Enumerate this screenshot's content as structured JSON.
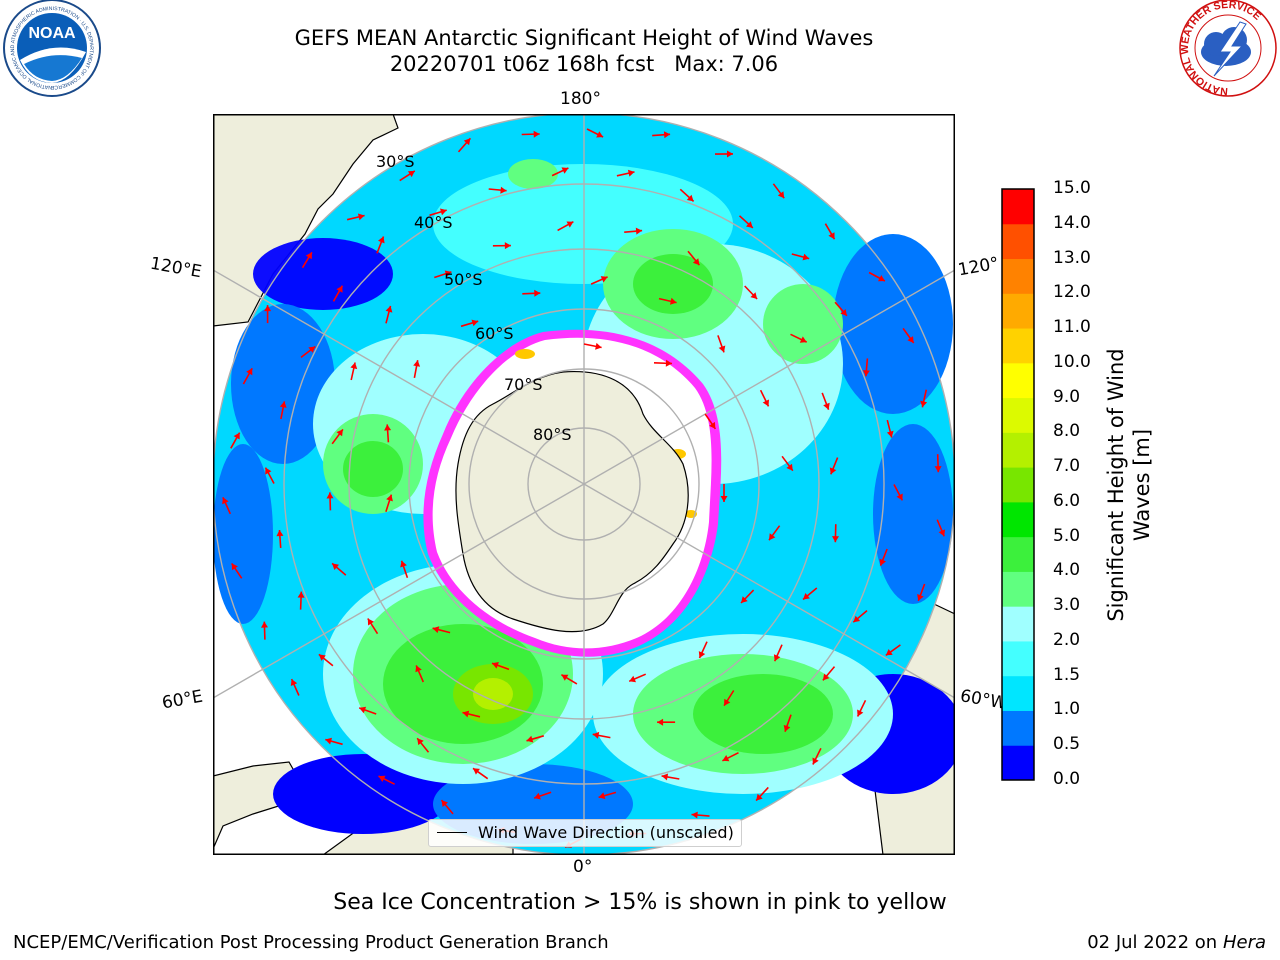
{
  "header": {
    "title_line1": "GEFS MEAN Antarctic Significant Height of Wind Waves",
    "title_line2": "20220701 t06z 168h fcst   Max: 7.06"
  },
  "logos": {
    "noaa": {
      "text": "NOAA",
      "ring_text": "NATIONAL OCEANIC AND ATMOSPHERIC ADMINISTRATION · U.S. DEPARTMENT OF COMMERCE"
    },
    "nws": {
      "ring_text": "NATIONAL WEATHER SERVICE"
    }
  },
  "map": {
    "projection": "south polar stereographic",
    "longitude_labels": {
      "top": "180°",
      "bottom": "0°",
      "upper_left": "120°E",
      "upper_right": "120°",
      "lower_left": "60°E",
      "lower_right": "60°W"
    },
    "latitude_labels": [
      "30°S",
      "40°S",
      "50°S",
      "60°S",
      "70°S",
      "80°S"
    ],
    "colors": {
      "land": "#eeeedc",
      "ocean_low": "#0000ff",
      "ice_edge": "#ff33ff",
      "arrows": "#ff0000",
      "grid": "#b0b0b0"
    },
    "legend_label": "Wind Wave Direction (unscaled)"
  },
  "colorbar": {
    "title_line1": "Significant Height of Wind",
    "title_line2": "Waves [m]",
    "ticks": [
      "0.0",
      "0.5",
      "1.0",
      "1.5",
      "2.0",
      "3.0",
      "4.0",
      "5.0",
      "6.0",
      "7.0",
      "8.0",
      "9.0",
      "10.0",
      "11.0",
      "12.0",
      "13.0",
      "14.0",
      "15.0"
    ],
    "colors": [
      "#0000ff",
      "#0078ff",
      "#00e6ff",
      "#44ffff",
      "#a0ffff",
      "#60ff80",
      "#3cf03c",
      "#00e600",
      "#78e600",
      "#b4f000",
      "#dcfa00",
      "#ffff00",
      "#ffd200",
      "#ffaa00",
      "#ff8200",
      "#ff5000",
      "#ff0000"
    ]
  },
  "footer": {
    "note": "Sea Ice Concentration > 15% is shown in pink to yellow",
    "credit_left": "NCEP/EMC/Verification Post Processing Product Generation Branch",
    "credit_right_date": "02 Jul 2022 on",
    "credit_right_host": "Hera"
  }
}
